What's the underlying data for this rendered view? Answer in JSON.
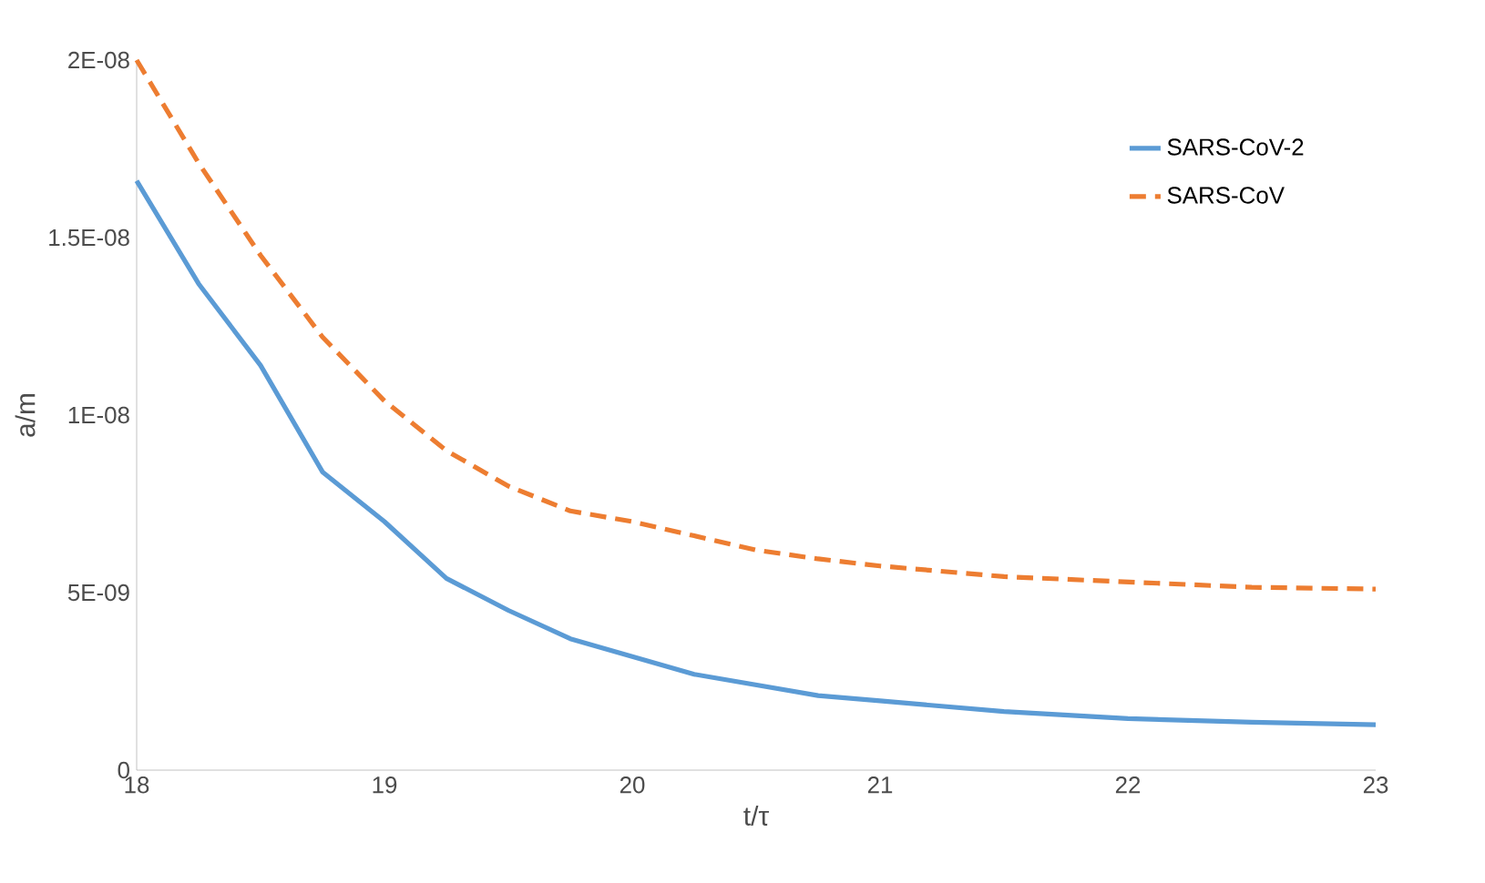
{
  "chart_data": {
    "type": "line",
    "xlabel": "t/τ",
    "ylabel": "a/m",
    "xlim": [
      18,
      23
    ],
    "xticks": [
      18,
      19,
      20,
      21,
      22,
      23
    ],
    "ylim": [
      0,
      2e-08
    ],
    "yticks": [
      {
        "value": 0,
        "label": "0"
      },
      {
        "value": 5e-09,
        "label": "5E-09"
      },
      {
        "value": 1e-08,
        "label": "1E-08"
      },
      {
        "value": 1.5e-08,
        "label": "1.5E-08"
      },
      {
        "value": 2e-08,
        "label": "2E-08"
      }
    ],
    "legend": "top right",
    "marker": "none",
    "grid": false,
    "x": [
      18,
      18.25,
      18.5,
      18.75,
      19,
      19.25,
      19.5,
      19.75,
      20,
      20.25,
      20.5,
      20.75,
      21,
      21.5,
      22,
      22.5,
      23
    ],
    "series": [
      {
        "name": "SARS-CoV-2",
        "color": "#5b9bd5",
        "line_style": "solid",
        "values": [
          1.66e-08,
          1.37e-08,
          1.14e-08,
          8.4e-09,
          7e-09,
          5.4e-09,
          4.5e-09,
          3.7e-09,
          3.2e-09,
          2.7e-09,
          2.4e-09,
          2.1e-09,
          1.95e-09,
          1.65e-09,
          1.45e-09,
          1.35e-09,
          1.28e-09
        ]
      },
      {
        "name": "SARS-CoV",
        "color": "#ed7d31",
        "line_style": "dashed",
        "values": [
          2e-08,
          1.71e-08,
          1.45e-08,
          1.22e-08,
          1.04e-08,
          9e-09,
          8e-09,
          7.3e-09,
          7e-09,
          6.6e-09,
          6.2e-09,
          5.95e-09,
          5.75e-09,
          5.45e-09,
          5.3e-09,
          5.15e-09,
          5.1e-09
        ]
      }
    ]
  }
}
